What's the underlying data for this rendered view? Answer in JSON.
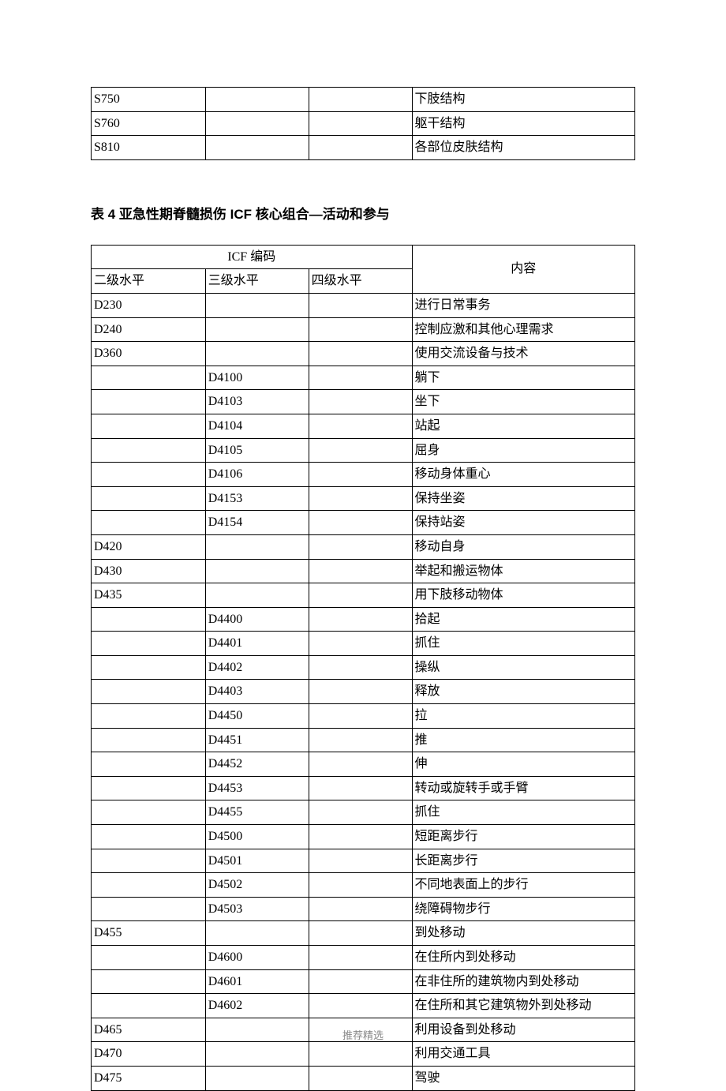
{
  "table1": {
    "col_widths": [
      "21%",
      "19%",
      "19%",
      "41%"
    ],
    "rows": [
      [
        "S750",
        "",
        "",
        "下肢结构"
      ],
      [
        "S760",
        "",
        "",
        "躯干结构"
      ],
      [
        "S810",
        "",
        "",
        "各部位皮肤结构"
      ]
    ]
  },
  "title": "表 4 亚急性期脊髓损伤 ICF 核心组合—活动和参与",
  "table2": {
    "header_group": "ICF 编码",
    "header_content": "内容",
    "subheaders": [
      "二级水平",
      "三级水平",
      "四级水平"
    ],
    "rows": [
      [
        "D230",
        "",
        "",
        "进行日常事务"
      ],
      [
        "D240",
        "",
        "",
        "控制应激和其他心理需求"
      ],
      [
        "D360",
        "",
        "",
        "使用交流设备与技术"
      ],
      [
        "",
        "D4100",
        "",
        "躺下"
      ],
      [
        "",
        "D4103",
        "",
        "坐下"
      ],
      [
        "",
        "D4104",
        "",
        "站起"
      ],
      [
        "",
        "D4105",
        "",
        "屈身"
      ],
      [
        "",
        "D4106",
        "",
        "移动身体重心"
      ],
      [
        "",
        "D4153",
        "",
        "保持坐姿"
      ],
      [
        "",
        "D4154",
        "",
        "保持站姿"
      ],
      [
        "D420",
        "",
        "",
        "移动自身"
      ],
      [
        "D430",
        "",
        "",
        "举起和搬运物体"
      ],
      [
        "D435",
        "",
        "",
        "用下肢移动物体"
      ],
      [
        "",
        "D4400",
        "",
        "拾起"
      ],
      [
        "",
        "D4401",
        "",
        "抓住"
      ],
      [
        "",
        "D4402",
        "",
        "操纵"
      ],
      [
        "",
        "D4403",
        "",
        "释放"
      ],
      [
        "",
        "D4450",
        "",
        "拉"
      ],
      [
        "",
        "D4451",
        "",
        "推"
      ],
      [
        "",
        "D4452",
        "",
        "伸"
      ],
      [
        "",
        "D4453",
        "",
        "转动或旋转手或手臂"
      ],
      [
        "",
        "D4455",
        "",
        "抓住"
      ],
      [
        "",
        "D4500",
        "",
        "短距离步行"
      ],
      [
        "",
        "D4501",
        "",
        "长距离步行"
      ],
      [
        "",
        "D4502",
        "",
        "不同地表面上的步行"
      ],
      [
        "",
        "D4503",
        "",
        "绕障碍物步行"
      ],
      [
        "D455",
        "",
        "",
        "到处移动"
      ],
      [
        "",
        "D4600",
        "",
        "在住所内到处移动"
      ],
      [
        "",
        "D4601",
        "",
        "在非住所的建筑物内到处移动"
      ],
      [
        "",
        "D4602",
        "",
        "在住所和其它建筑物外到处移动"
      ],
      [
        "D465",
        "",
        "",
        "利用设备到处移动"
      ],
      [
        "D470",
        "",
        "",
        "利用交通工具"
      ],
      [
        "D475",
        "",
        "",
        "驾驶"
      ]
    ]
  },
  "footer": "推荐精选"
}
